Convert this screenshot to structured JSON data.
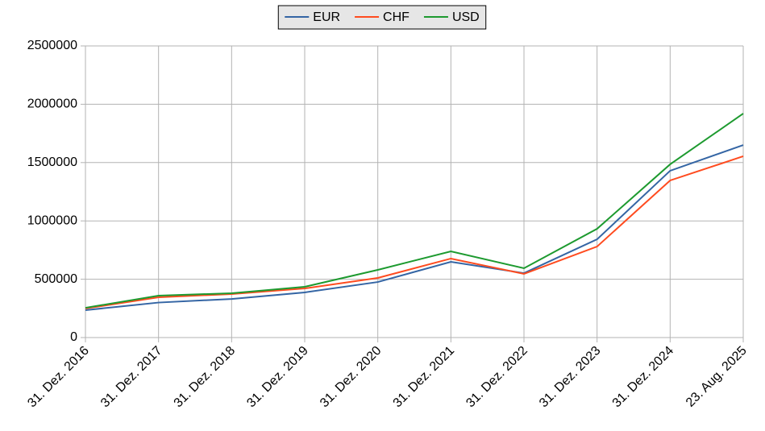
{
  "chart_data": {
    "type": "line",
    "categories": [
      "31. Dez. 2016",
      "31. Dez. 2017",
      "31. Dez. 2018",
      "31. Dez. 2019",
      "31. Dez. 2020",
      "31. Dez. 2021",
      "31. Dez. 2022",
      "31. Dez. 2023",
      "31. Dez. 2024",
      "23. Aug. 2025"
    ],
    "series": [
      {
        "name": "EUR",
        "color": "#3465a4",
        "values": [
          235000,
          300000,
          331000,
          387000,
          476000,
          649000,
          552000,
          842000,
          1430000,
          1650000
        ]
      },
      {
        "name": "CHF",
        "color": "#ff4b1f",
        "values": [
          249000,
          345000,
          373000,
          421000,
          511000,
          677000,
          546000,
          780000,
          1347000,
          1554000
        ]
      },
      {
        "name": "USD",
        "color": "#1d9a2f",
        "values": [
          255000,
          359000,
          380000,
          435000,
          580000,
          739000,
          594000,
          932000,
          1485000,
          1920000
        ]
      }
    ],
    "ylim": [
      0,
      2500000
    ],
    "yticks": [
      0,
      500000,
      1000000,
      1500000,
      2000000,
      2500000
    ],
    "grid": true,
    "legend": "top"
  }
}
